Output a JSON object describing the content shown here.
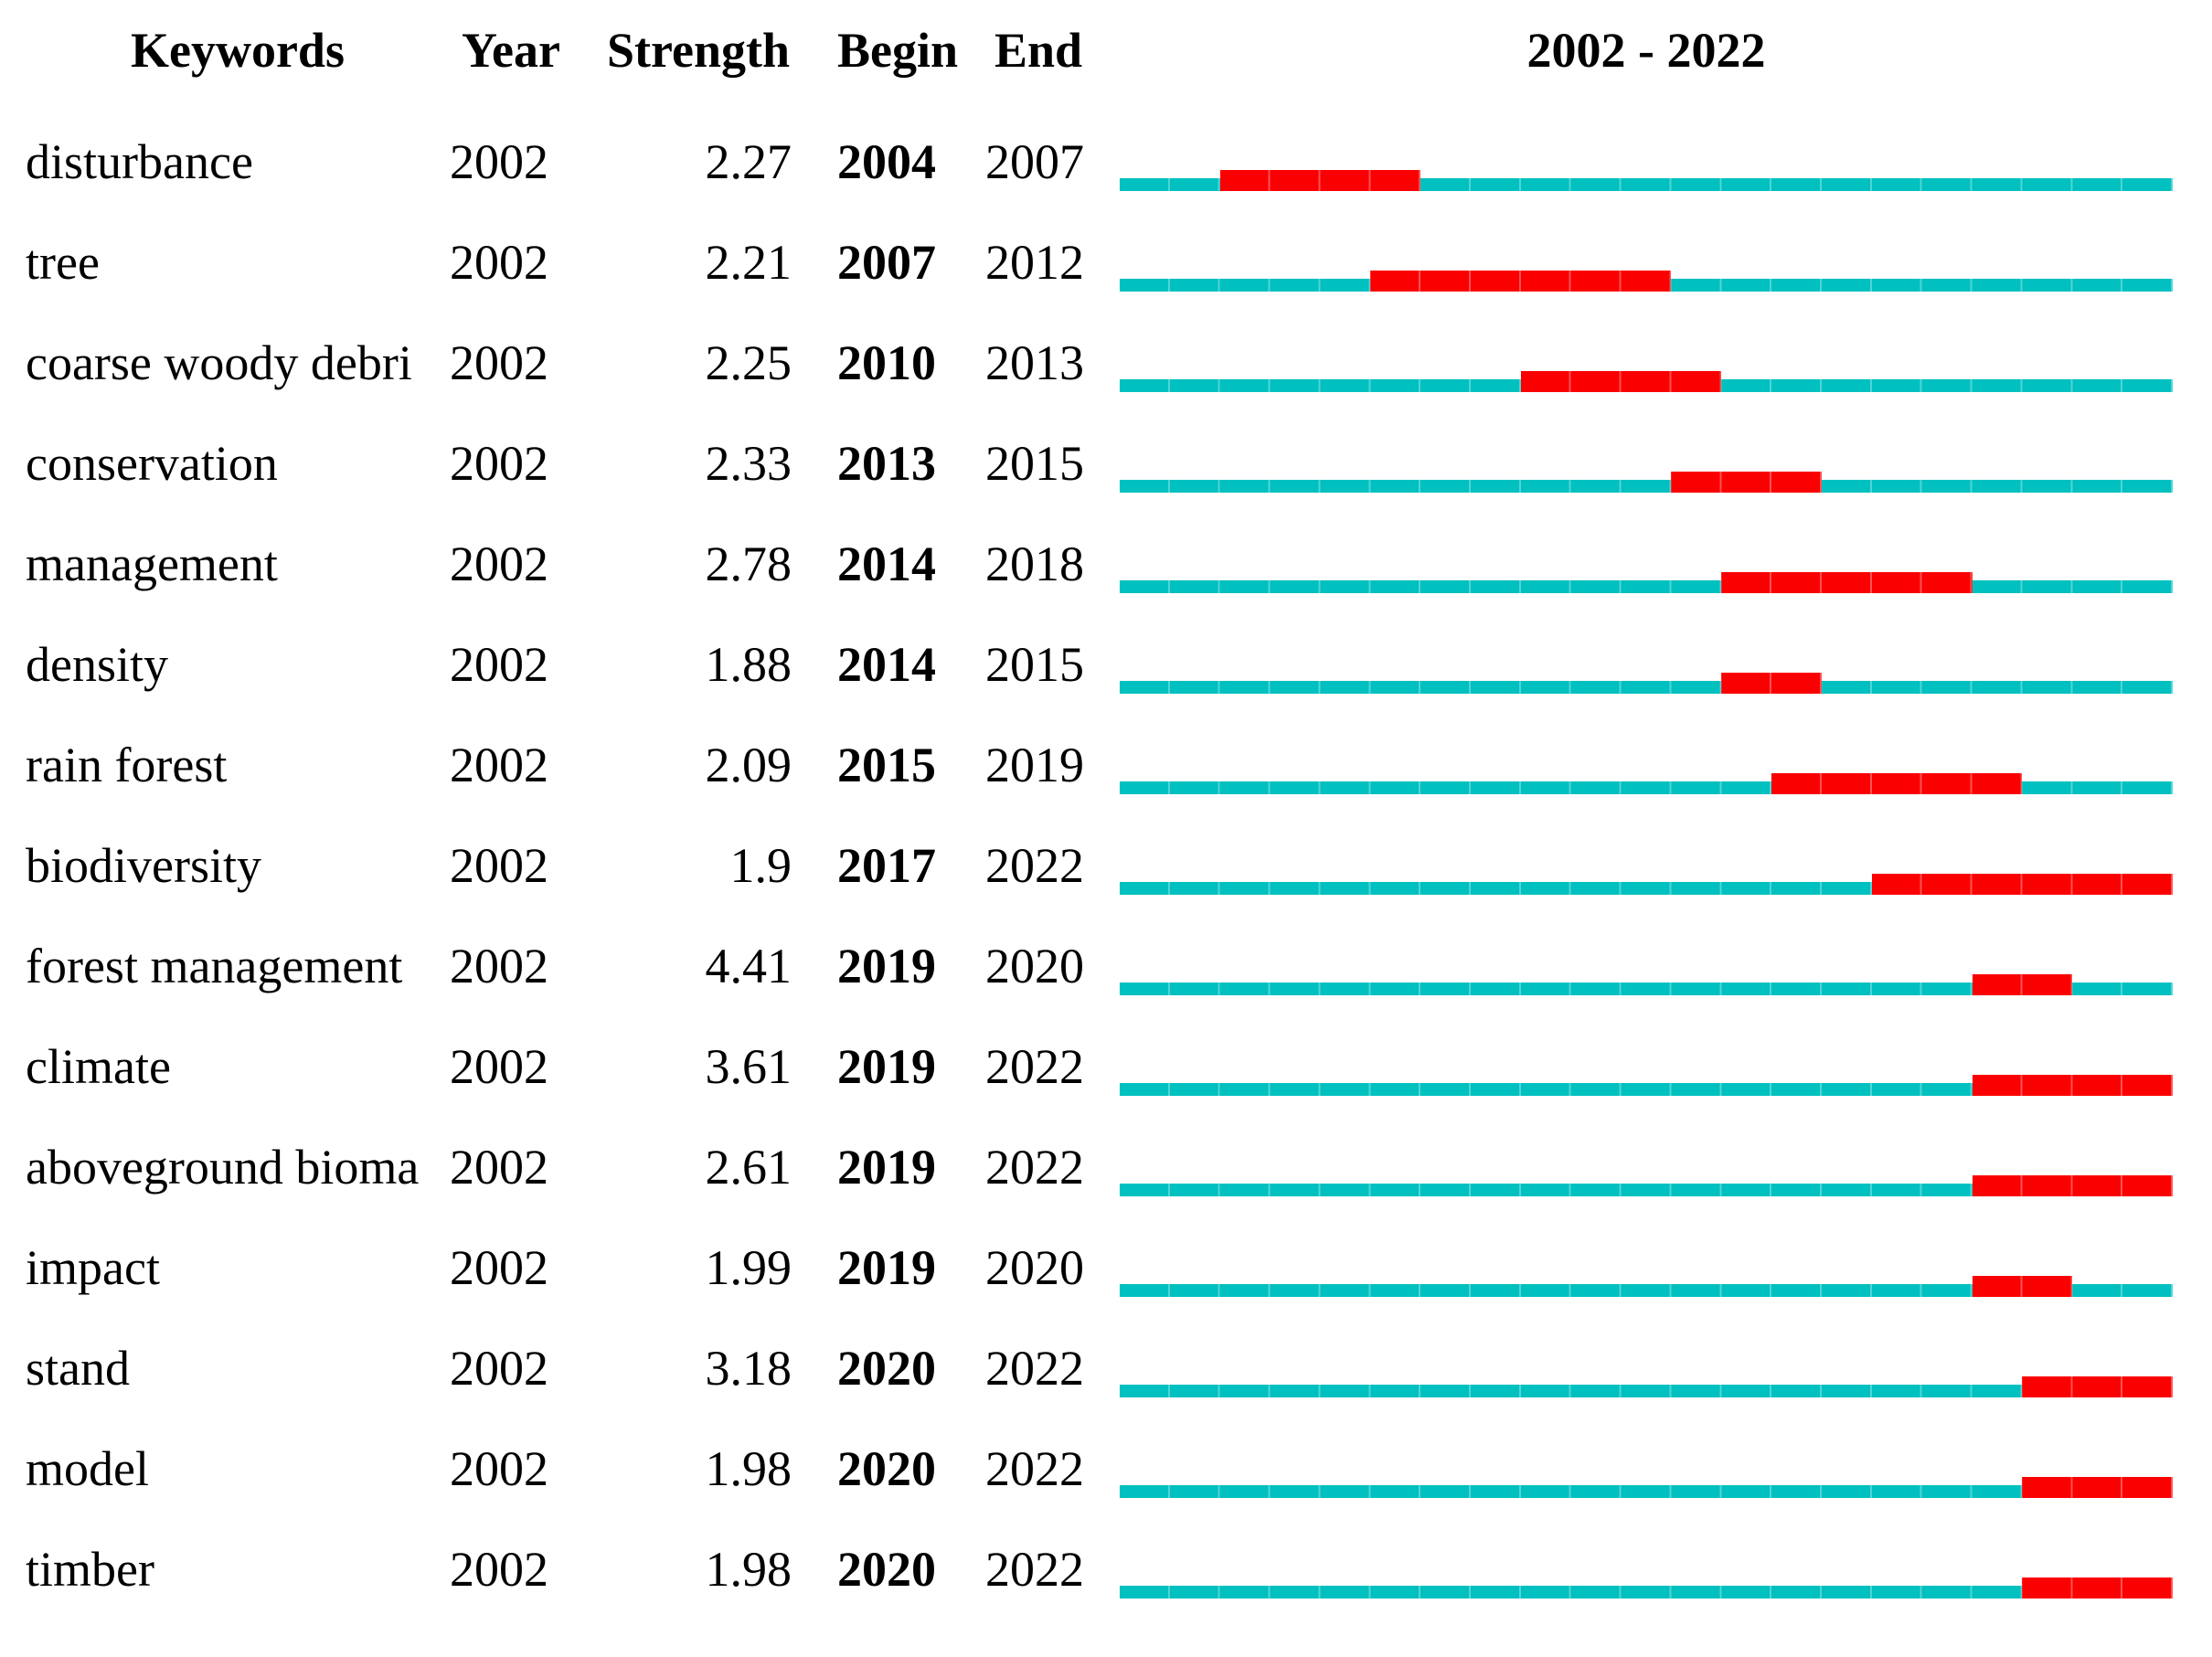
{
  "header": {
    "keywords": "Keywords",
    "year": "Year",
    "strength": "Strength",
    "begin": "Begin",
    "end": "End",
    "period": "2002 - 2022"
  },
  "chart_data": {
    "type": "table",
    "subtype": "citation-burst-timeline",
    "title": "2002 - 2022",
    "columns": [
      "Keywords",
      "Year",
      "Strength",
      "Begin",
      "End"
    ],
    "timeline": {
      "start_year": 2002,
      "end_year": 2022,
      "line_color": "#00c0c0",
      "burst_color": "#fb0000",
      "tick_separator_opacity": 0.32
    },
    "rows": [
      {
        "keyword": "disturbance",
        "year": "2002",
        "strength": "2.27",
        "begin": 2004,
        "end": 2007
      },
      {
        "keyword": "tree",
        "year": "2002",
        "strength": "2.21",
        "begin": 2007,
        "end": 2012
      },
      {
        "keyword": "coarse woody debri",
        "year": "2002",
        "strength": "2.25",
        "begin": 2010,
        "end": 2013
      },
      {
        "keyword": "conservation",
        "year": "2002",
        "strength": "2.33",
        "begin": 2013,
        "end": 2015
      },
      {
        "keyword": "management",
        "year": "2002",
        "strength": "2.78",
        "begin": 2014,
        "end": 2018
      },
      {
        "keyword": "density",
        "year": "2002",
        "strength": "1.88",
        "begin": 2014,
        "end": 2015
      },
      {
        "keyword": "rain forest",
        "year": "2002",
        "strength": "2.09",
        "begin": 2015,
        "end": 2019
      },
      {
        "keyword": "biodiversity",
        "year": "2002",
        "strength": "1.9",
        "begin": 2017,
        "end": 2022
      },
      {
        "keyword": "forest management",
        "year": "2002",
        "strength": "4.41",
        "begin": 2019,
        "end": 2020
      },
      {
        "keyword": "climate",
        "year": "2002",
        "strength": "3.61",
        "begin": 2019,
        "end": 2022
      },
      {
        "keyword": "aboveground bioma",
        "year": "2002",
        "strength": "2.61",
        "begin": 2019,
        "end": 2022
      },
      {
        "keyword": "impact",
        "year": "2002",
        "strength": "1.99",
        "begin": 2019,
        "end": 2020
      },
      {
        "keyword": "stand",
        "year": "2002",
        "strength": "3.18",
        "begin": 2020,
        "end": 2022
      },
      {
        "keyword": "model",
        "year": "2002",
        "strength": "1.98",
        "begin": 2020,
        "end": 2022
      },
      {
        "keyword": "timber",
        "year": "2002",
        "strength": "1.98",
        "begin": 2020,
        "end": 2022
      }
    ]
  }
}
